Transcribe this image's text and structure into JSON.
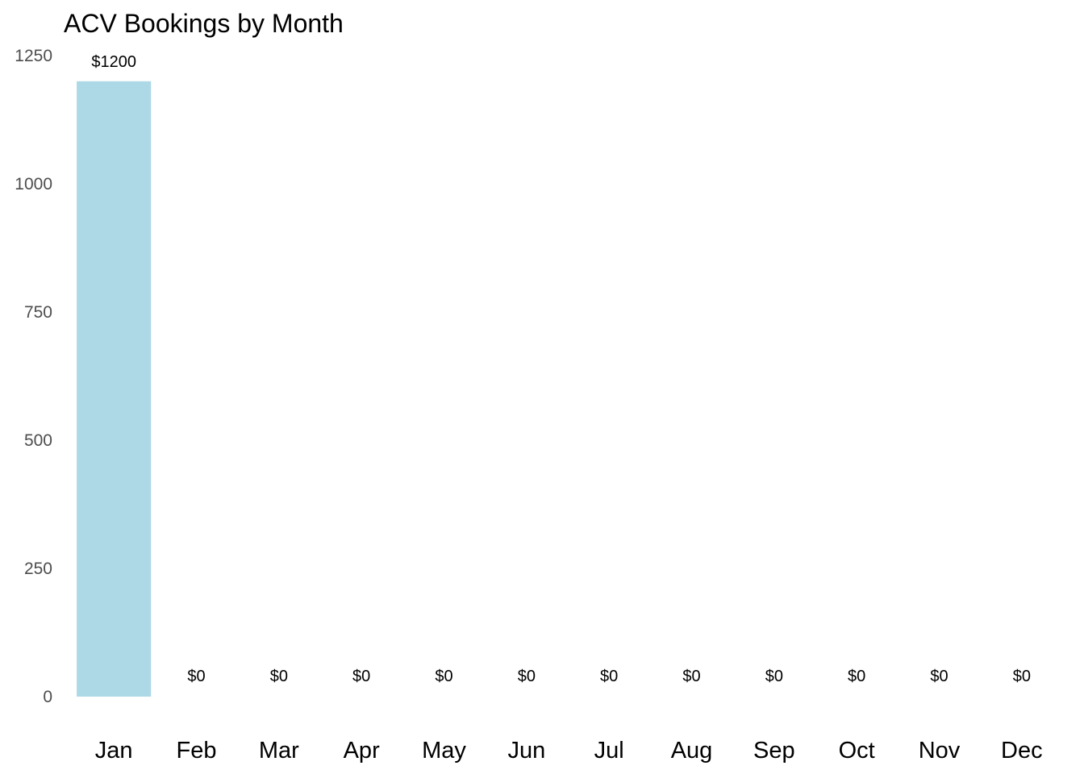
{
  "chart_data": {
    "type": "bar",
    "title": "ACV Bookings by Month",
    "xlabel": "",
    "ylabel": "",
    "categories": [
      "Jan",
      "Feb",
      "Mar",
      "Apr",
      "May",
      "Jun",
      "Jul",
      "Aug",
      "Sep",
      "Oct",
      "Nov",
      "Dec"
    ],
    "values": [
      1200,
      0,
      0,
      0,
      0,
      0,
      0,
      0,
      0,
      0,
      0,
      0
    ],
    "data_labels": [
      "$1200",
      "$0",
      "$0",
      "$0",
      "$0",
      "$0",
      "$0",
      "$0",
      "$0",
      "$0",
      "$0",
      "$0"
    ],
    "ylim": [
      0,
      1250
    ],
    "y_ticks": [
      0,
      250,
      500,
      750,
      1000,
      1250
    ],
    "y_tick_labels": [
      "0",
      "250",
      "500",
      "750",
      "1000",
      "1250"
    ],
    "grid": false,
    "legend": "none",
    "colors": {
      "bar": "#add8e6",
      "text": "#000000",
      "axis_text": "#4d4d4d"
    }
  }
}
